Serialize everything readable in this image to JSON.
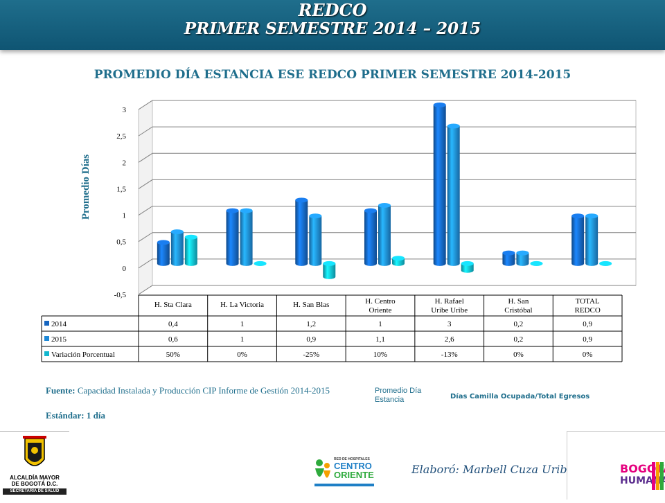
{
  "header": {
    "line1": "REDCO",
    "line2": "PRIMER SEMESTRE 2014 – 2015"
  },
  "chart_title": "PROMEDIO DÍA ESTANCIA ESE REDCO PRIMER SEMESTRE 2014-2015",
  "chart_data": {
    "type": "bar",
    "title": "PROMEDIO DÍA ESTANCIA ESE REDCO PRIMER SEMESTRE 2014-2015",
    "ylabel": "Promedio Días",
    "ylim": [
      -0.5,
      3
    ],
    "yticks": [
      "-0,5",
      "0",
      "0,5",
      "1",
      "1,5",
      "2",
      "2,5",
      "3"
    ],
    "categories": [
      "H. Sta Clara",
      "H. La Victoria",
      "H. San Blas",
      "H. Centro Oriente",
      "H. Rafael Uribe Uribe",
      "H. San Cristóbal",
      "TOTAL REDCO"
    ],
    "series": [
      {
        "name": "2014",
        "values": [
          0.4,
          1,
          1.2,
          1,
          3,
          0.2,
          0.9
        ],
        "labels": [
          "0,4",
          "1",
          "1,2",
          "1",
          "3",
          "0,2",
          "0,9"
        ],
        "color": "#1565c0"
      },
      {
        "name": "2015",
        "values": [
          0.6,
          1,
          0.9,
          1.1,
          2.6,
          0.2,
          0.9
        ],
        "labels": [
          "0,6",
          "1",
          "0,9",
          "1,1",
          "2,6",
          "0,2",
          "0,9"
        ],
        "color": "#1e88d6"
      },
      {
        "name": "Variación Porcentual",
        "values": [
          0.5,
          0,
          -0.25,
          0.1,
          -0.13,
          0,
          0
        ],
        "labels": [
          "50%",
          "0%",
          "-25%",
          "10%",
          "-13%",
          "0%",
          "0%"
        ],
        "color": "#12b7cf"
      }
    ],
    "grid": true,
    "legend": "data table"
  },
  "notes": {
    "fuente_label": "Fuente:",
    "fuente_text": "Capacidad Instalada y Producción CIP Informe de Gestión 2014-2015",
    "estandar": "Estándar: 1 día"
  },
  "definition": {
    "term": "Promedio Día Estancia",
    "formula": "Días Camilla Ocupada/Total Egresos"
  },
  "footer": {
    "elaboro": "Elaboró: Marbell Cuza Uribe",
    "logo_left_line1": "ALCALDÍA MAYOR",
    "logo_left_line2": "DE BOGOTÁ D.C.",
    "logo_left_line3": "SECRETARÍA DE SALUD",
    "logo_mid_line1": "RED DE HOSPITALES",
    "logo_mid_line2": "CENTRO",
    "logo_mid_line3": "ORIENTE",
    "logo_right_line1": "BOGOTÁ",
    "logo_right_line2": "HUMANA"
  }
}
